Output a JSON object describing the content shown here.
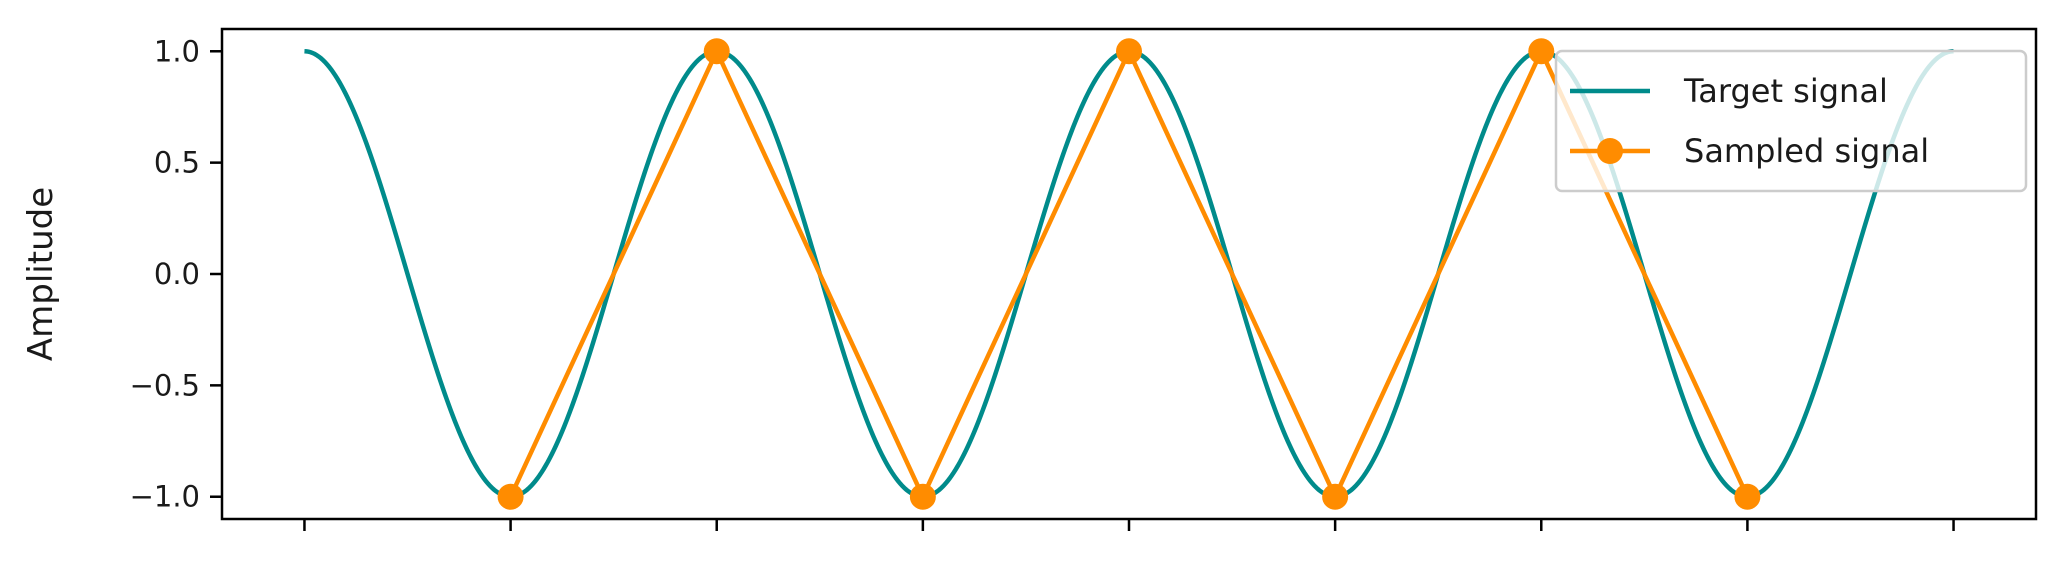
{
  "chart_data": {
    "type": "line",
    "title": "",
    "xlabel": "",
    "ylabel": "Amplitude",
    "xlim": [
      -0.4,
      8.4
    ],
    "ylim": [
      -1.1,
      1.1
    ],
    "x_ticks": [
      0,
      1,
      2,
      3,
      4,
      5,
      6,
      7,
      8
    ],
    "x_tick_labels_visible": false,
    "y_ticks": [
      -1.0,
      -0.5,
      0.0,
      0.5,
      1.0
    ],
    "y_tick_labels": [
      "−1.0",
      "−0.5",
      "0.0",
      "0.5",
      "1.0"
    ],
    "grid": false,
    "legend_position": "top-right",
    "series": [
      {
        "name": "Target signal",
        "kind": "continuous cosine",
        "function": "cos(pi * x)",
        "x_range": [
          0,
          8
        ],
        "color": "#008b8b"
      },
      {
        "name": "Sampled signal",
        "kind": "line with markers",
        "x": [
          1,
          2,
          3,
          4,
          5,
          6,
          7
        ],
        "y": [
          -1,
          1,
          -1,
          1,
          -1,
          1,
          -1
        ],
        "color": "#ff8c00"
      }
    ]
  }
}
